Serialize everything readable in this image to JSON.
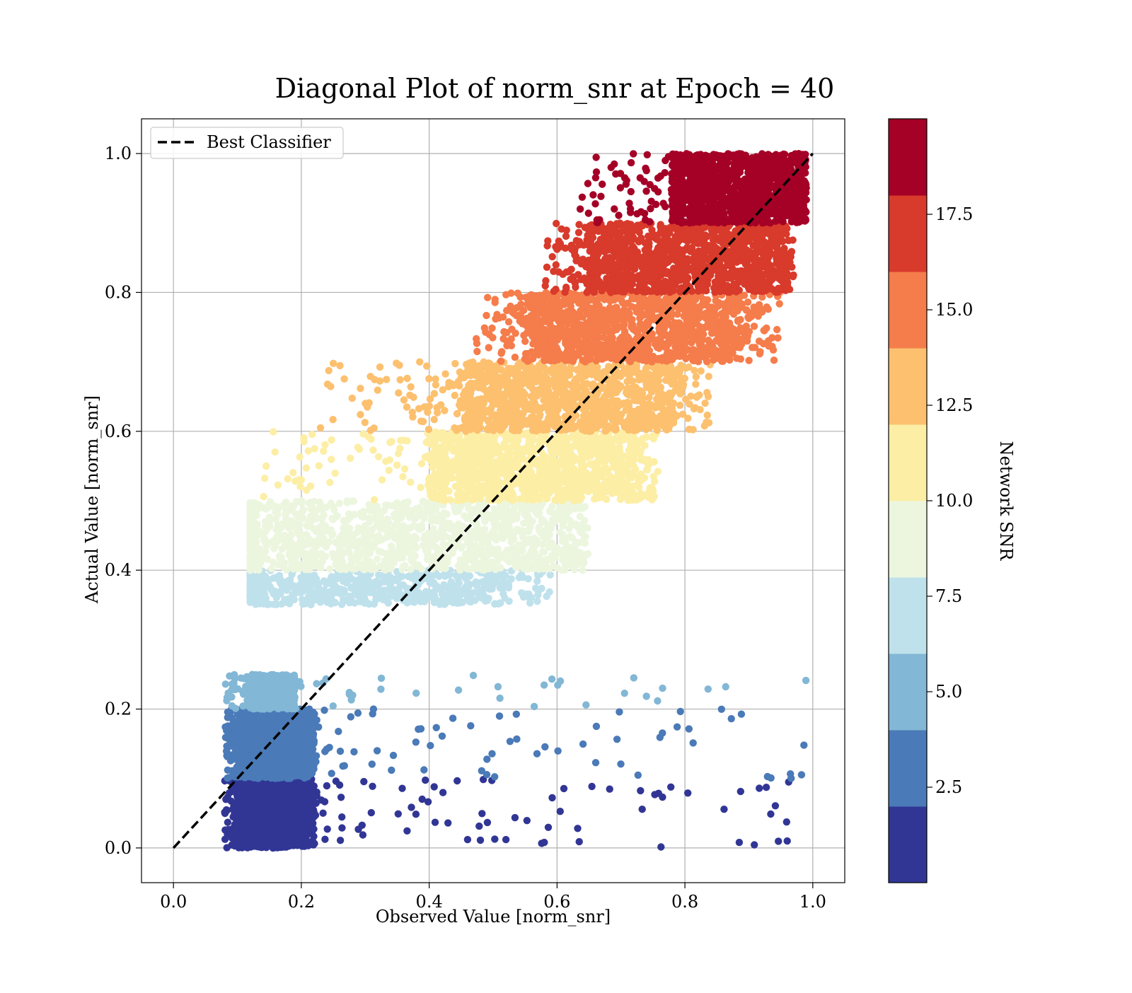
{
  "chart_data": {
    "type": "scatter",
    "title": "Diagonal Plot of norm_snr at Epoch = 40",
    "xlabel": "Observed Value [norm_snr]",
    "ylabel": "Actual Value [norm_snr]",
    "xlim": [
      -0.05,
      1.05
    ],
    "ylim": [
      -0.05,
      1.05
    ],
    "x_ticks": [
      0.0,
      0.2,
      0.4,
      0.6,
      0.8,
      1.0
    ],
    "y_ticks": [
      0.0,
      0.2,
      0.4,
      0.6,
      0.8,
      1.0
    ],
    "x_tick_labels": [
      "0.0",
      "0.2",
      "0.4",
      "0.6",
      "0.8",
      "1.0"
    ],
    "y_tick_labels": [
      "0.0",
      "0.2",
      "0.4",
      "0.6",
      "0.8",
      "1.0"
    ],
    "grid": true,
    "legend": {
      "position": "top-left",
      "entries": [
        {
          "label": "Best Classifier",
          "style": "dashed",
          "color": "#000000"
        }
      ]
    },
    "reference_line": {
      "x": [
        0.0,
        1.0
      ],
      "y": [
        0.0,
        1.0
      ],
      "style": "dashed",
      "color": "#000000"
    },
    "colorbar": {
      "label": "Network SNR",
      "range": [
        0,
        20
      ],
      "ticks": [
        2.5,
        5.0,
        7.5,
        10.0,
        12.5,
        15.0,
        17.5
      ],
      "tick_labels": [
        "2.5",
        "5.0",
        "7.5",
        "10.0",
        "12.5",
        "15.0",
        "17.5"
      ],
      "colormap": [
        "#313695",
        "#4a7ab7",
        "#82b7d5",
        "#bfe1ec",
        "#ecf6df",
        "#fdeea6",
        "#fcc06f",
        "#f57c4b",
        "#d83a2b",
        "#a50026"
      ]
    },
    "bands": [
      {
        "snr_bin": [
          0,
          2
        ],
        "color": "#313695",
        "actual_range": [
          0.0,
          0.1
        ],
        "dense_observed": [
          0.1,
          0.22
        ],
        "spread_observed": [
          0.08,
          1.0
        ]
      },
      {
        "snr_bin": [
          2,
          4
        ],
        "color": "#4a7ab7",
        "actual_range": [
          0.1,
          0.2
        ],
        "dense_observed": [
          0.1,
          0.22
        ],
        "spread_observed": [
          0.08,
          1.0
        ]
      },
      {
        "snr_bin": [
          4,
          6
        ],
        "color": "#82b7d5",
        "actual_range": [
          0.2,
          0.25
        ],
        "dense_observed": [
          0.12,
          0.19
        ],
        "spread_observed": [
          0.08,
          1.0
        ]
      },
      {
        "snr_bin": [
          6,
          8
        ],
        "color": "#bfe1ec",
        "actual_range": [
          0.35,
          0.4
        ],
        "dense_observed": [
          0.12,
          0.52
        ],
        "spread_observed": [
          0.12,
          0.59
        ]
      },
      {
        "snr_bin": [
          8,
          10
        ],
        "color": "#ecf6df",
        "actual_range": [
          0.4,
          0.5
        ],
        "dense_observed": [
          0.12,
          0.62
        ],
        "spread_observed": [
          0.12,
          0.65
        ]
      },
      {
        "snr_bin": [
          10,
          12
        ],
        "color": "#fdeea6",
        "actual_range": [
          0.5,
          0.6
        ],
        "dense_observed": [
          0.4,
          0.72
        ],
        "spread_observed": [
          0.13,
          0.76
        ]
      },
      {
        "snr_bin": [
          12,
          14
        ],
        "color": "#fcc06f",
        "actual_range": [
          0.6,
          0.7
        ],
        "dense_observed": [
          0.45,
          0.78
        ],
        "spread_observed": [
          0.23,
          0.84
        ]
      },
      {
        "snr_bin": [
          14,
          16
        ],
        "color": "#f57c4b",
        "actual_range": [
          0.7,
          0.8
        ],
        "dense_observed": [
          0.55,
          0.88
        ],
        "spread_observed": [
          0.47,
          0.95
        ]
      },
      {
        "snr_bin": [
          16,
          18
        ],
        "color": "#d83a2b",
        "actual_range": [
          0.8,
          0.9
        ],
        "dense_observed": [
          0.65,
          0.95
        ],
        "spread_observed": [
          0.58,
          0.97
        ]
      },
      {
        "snr_bin": [
          18,
          20
        ],
        "color": "#a50026",
        "actual_range": [
          0.9,
          1.0
        ],
        "dense_observed": [
          0.78,
          0.98
        ],
        "spread_observed": [
          0.63,
          0.99
        ]
      }
    ],
    "outlier_points": [
      {
        "x": 0.23,
        "y": 0.605,
        "snr_bin": 12
      },
      {
        "x": 0.3,
        "y": 0.64,
        "snr_bin": 12
      },
      {
        "x": 0.365,
        "y": 0.635,
        "snr_bin": 12
      },
      {
        "x": 0.395,
        "y": 0.635,
        "snr_bin": 12
      },
      {
        "x": 0.475,
        "y": 0.715,
        "snr_bin": 14
      },
      {
        "x": 0.635,
        "y": 0.44,
        "snr_bin": 8
      },
      {
        "x": 0.73,
        "y": 0.965,
        "snr_bin": 18
      },
      {
        "x": 0.145,
        "y": 0.55,
        "snr_bin": 10
      },
      {
        "x": 0.2,
        "y": 0.53,
        "snr_bin": 10
      },
      {
        "x": 0.72,
        "y": 0.245,
        "snr_bin": 4
      },
      {
        "x": 0.765,
        "y": 0.23,
        "snr_bin": 4
      },
      {
        "x": 0.51,
        "y": 0.19,
        "snr_bin": 2
      },
      {
        "x": 0.58,
        "y": 0.008,
        "snr_bin": 0
      },
      {
        "x": 0.46,
        "y": 0.012,
        "snr_bin": 0
      },
      {
        "x": 0.52,
        "y": 0.012,
        "snr_bin": 0
      },
      {
        "x": 0.885,
        "y": 0.008,
        "snr_bin": 0
      },
      {
        "x": 0.96,
        "y": 0.01,
        "snr_bin": 0
      }
    ]
  }
}
